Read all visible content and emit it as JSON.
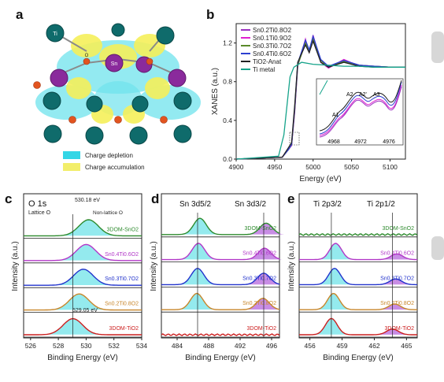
{
  "panel_a": {
    "letter": "a",
    "legend": [
      {
        "label": "Charge depletion",
        "color": "#33d6e6"
      },
      {
        "label": "Charge accumulation",
        "color": "#f2ee6a"
      }
    ],
    "atom_labels": [
      "Ti",
      "Sn",
      "O"
    ]
  },
  "panel_b": {
    "letter": "b",
    "xlabel": "Energy (eV)",
    "ylabel": "XANES (a.u.)",
    "xticks": [
      "4900",
      "4950",
      "5000",
      "5050",
      "5100"
    ],
    "yticks": [
      "0.0",
      "0.4",
      "0.8",
      "1.2"
    ],
    "legend": [
      {
        "label": "Sn0.2Ti0.8O2",
        "color": "#9b30c0"
      },
      {
        "label": "Sn0.1Ti0.9O2",
        "color": "#e020d0"
      },
      {
        "label": "Sn0.3Ti0.7O2",
        "color": "#5a8a2a"
      },
      {
        "label": "Sn0.4Ti0.6O2",
        "color": "#2c3fd0"
      },
      {
        "label": "TiO2-Anat",
        "color": "#222222"
      },
      {
        "label": "Ti metal",
        "color": "#15a38a"
      }
    ],
    "inset": {
      "labels": [
        "A1",
        "A2",
        "A2'",
        "A3"
      ],
      "xticks": [
        "4968",
        "4972",
        "4976"
      ]
    }
  },
  "panel_c": {
    "letter": "c",
    "title": "O 1s",
    "xlabel": "Binding Energy (eV)",
    "ylabel": "Intensity (a.u.)",
    "xticks": [
      "526",
      "528",
      "530",
      "532",
      "534"
    ],
    "annotations": [
      "530.18 eV",
      "Lattice O",
      "Non-lattice O",
      "529.05 eV"
    ],
    "samples": [
      {
        "label": "3DOM-SnO2",
        "color": "#2e8b2e"
      },
      {
        "label": "Sn0.4Ti0.6O2",
        "color": "#b238c8"
      },
      {
        "label": "Sn0.3Ti0.7O2",
        "color": "#2233cc"
      },
      {
        "label": "Sn0.2Ti0.8O2",
        "color": "#c8862a"
      },
      {
        "label": "3DOM-TiO2",
        "color": "#cc2020"
      }
    ]
  },
  "panel_d": {
    "letter": "d",
    "title_left": "Sn 3d5/2",
    "title_right": "Sn 3d3/2",
    "xlabel": "Binding Energy (eV)",
    "ylabel": "Intensity (a.u.)",
    "xticks": [
      "484",
      "488",
      "492",
      "496"
    ],
    "samples": [
      {
        "label": "3DOM-SnO2",
        "color": "#2e8b2e"
      },
      {
        "label": "Sn0.4Ti0.6O2",
        "color": "#b238c8"
      },
      {
        "label": "Sn0.3Ti0.7O2",
        "color": "#2233cc"
      },
      {
        "label": "Sn0.2Ti0.8O2",
        "color": "#c8862a"
      },
      {
        "label": "3DOM-TiO2",
        "color": "#cc2020"
      }
    ]
  },
  "panel_e": {
    "letter": "e",
    "title_left": "Ti 2p3/2",
    "title_right": "Ti 2p1/2",
    "xlabel": "Binding Energy (eV)",
    "ylabel": "Intensity (a.u.)",
    "xticks": [
      "456",
      "459",
      "462",
      "465"
    ],
    "samples": [
      {
        "label": "3DOM-SnO2",
        "color": "#2e8b2e"
      },
      {
        "label": "Sn0.4Ti0.6O2",
        "color": "#b238c8"
      },
      {
        "label": "Sn0.3Ti0.7O2",
        "color": "#2233cc"
      },
      {
        "label": "Sn0.2Ti0.8O2",
        "color": "#c8862a"
      },
      {
        "label": "3DOM-TiO2",
        "color": "#cc2020"
      }
    ]
  },
  "chart_data": [
    {
      "type": "line",
      "panel": "b",
      "xlabel": "Energy (eV)",
      "ylabel": "XANES (a.u.)",
      "xlim": [
        4900,
        5120
      ],
      "ylim": [
        0,
        1.4
      ],
      "series": [
        {
          "name": "Sn0.2Ti0.8O2",
          "x": [
            4900,
            4960,
            4968,
            4972,
            4976,
            4980,
            4990,
            4995,
            5000,
            5010,
            5020,
            5040,
            5060,
            5080,
            5100,
            5120
          ],
          "y": [
            0.0,
            0.02,
            0.1,
            0.15,
            0.5,
            0.98,
            1.22,
            1.12,
            1.26,
            1.02,
            0.95,
            1.02,
            0.97,
            0.96,
            0.95,
            0.95
          ]
        },
        {
          "name": "Sn0.1Ti0.9O2",
          "x": [
            4900,
            4960,
            4968,
            4972,
            4976,
            4980,
            4990,
            4995,
            5000,
            5010,
            5020,
            5040,
            5060,
            5080,
            5100,
            5120
          ],
          "y": [
            0.0,
            0.02,
            0.1,
            0.14,
            0.48,
            0.96,
            1.24,
            1.1,
            1.28,
            1.0,
            0.94,
            1.03,
            0.96,
            0.96,
            0.95,
            0.95
          ]
        },
        {
          "name": "Sn0.3Ti0.7O2",
          "x": [
            4900,
            4960,
            4968,
            4972,
            4976,
            4980,
            4990,
            4995,
            5000,
            5010,
            5020,
            5040,
            5060,
            5080,
            5100,
            5120
          ],
          "y": [
            0.0,
            0.02,
            0.1,
            0.15,
            0.5,
            0.97,
            1.2,
            1.12,
            1.24,
            1.02,
            0.95,
            1.01,
            0.97,
            0.96,
            0.95,
            0.95
          ]
        },
        {
          "name": "Sn0.4Ti0.6O2",
          "x": [
            4900,
            4960,
            4968,
            4972,
            4976,
            4980,
            4990,
            4995,
            5000,
            5010,
            5020,
            5040,
            5060,
            5080,
            5100,
            5120
          ],
          "y": [
            0.0,
            0.02,
            0.1,
            0.15,
            0.52,
            0.99,
            1.23,
            1.13,
            1.27,
            1.03,
            0.96,
            1.02,
            0.97,
            0.96,
            0.95,
            0.95
          ]
        },
        {
          "name": "TiO2-Anat",
          "x": [
            4900,
            4960,
            4968,
            4972,
            4976,
            4980,
            4990,
            4995,
            5000,
            5010,
            5020,
            5040,
            5060,
            5080,
            5100,
            5120
          ],
          "y": [
            0.0,
            0.02,
            0.12,
            0.17,
            0.55,
            1.0,
            1.18,
            1.1,
            1.22,
            1.0,
            0.95,
            1.0,
            0.96,
            0.95,
            0.95,
            0.95
          ]
        },
        {
          "name": "Ti metal",
          "x": [
            4900,
            4955,
            4962,
            4966,
            4970,
            4975,
            4985,
            5000,
            5020,
            5040,
            5060,
            5080,
            5100,
            5120
          ],
          "y": [
            0.0,
            0.03,
            0.25,
            0.55,
            0.85,
            0.95,
            1.0,
            0.98,
            0.97,
            0.96,
            0.96,
            0.95,
            0.95,
            0.95
          ]
        }
      ]
    },
    {
      "type": "line",
      "panel": "c",
      "xlabel": "Binding Energy (eV)",
      "ylabel": "Intensity (a.u.)",
      "xlim": [
        525.5,
        534
      ],
      "peaks_eV": {
        "3DOM-SnO2": 530.18,
        "3DOM-TiO2": 529.05
      },
      "series": [
        {
          "name": "3DOM-SnO2",
          "center": 530.18
        },
        {
          "name": "Sn0.4Ti0.6O2",
          "center": 530.0
        },
        {
          "name": "Sn0.3Ti0.7O2",
          "center": 529.8
        },
        {
          "name": "Sn0.2Ti0.8O2",
          "center": 529.5
        },
        {
          "name": "3DOM-TiO2",
          "center": 529.05
        }
      ]
    },
    {
      "type": "line",
      "panel": "d",
      "xlabel": "Binding Energy (eV)",
      "ylabel": "Intensity (a.u.)",
      "xlim": [
        482,
        497
      ],
      "series": [
        {
          "name": "3DOM-SnO2",
          "centers": [
            486.9,
            495.3
          ]
        },
        {
          "name": "Sn0.4Ti0.6O2",
          "centers": [
            486.7,
            495.1
          ]
        },
        {
          "name": "Sn0.3Ti0.7O2",
          "centers": [
            486.6,
            495.0
          ]
        },
        {
          "name": "Sn0.2Ti0.8O2",
          "centers": [
            486.5,
            494.9
          ]
        },
        {
          "name": "3DOM-TiO2",
          "centers": []
        }
      ]
    },
    {
      "type": "line",
      "panel": "e",
      "xlabel": "Binding Energy (eV)",
      "ylabel": "Intensity (a.u.)",
      "xlim": [
        455,
        466
      ],
      "series": [
        {
          "name": "3DOM-SnO2",
          "centers": []
        },
        {
          "name": "Sn0.4Ti0.6O2",
          "centers": [
            458.4,
            464.1
          ]
        },
        {
          "name": "Sn0.3Ti0.7O2",
          "centers": [
            458.3,
            464.0
          ]
        },
        {
          "name": "Sn0.2Ti0.8O2",
          "centers": [
            458.2,
            463.9
          ]
        },
        {
          "name": "3DOM-TiO2",
          "centers": [
            458.0,
            463.7
          ]
        }
      ]
    }
  ]
}
